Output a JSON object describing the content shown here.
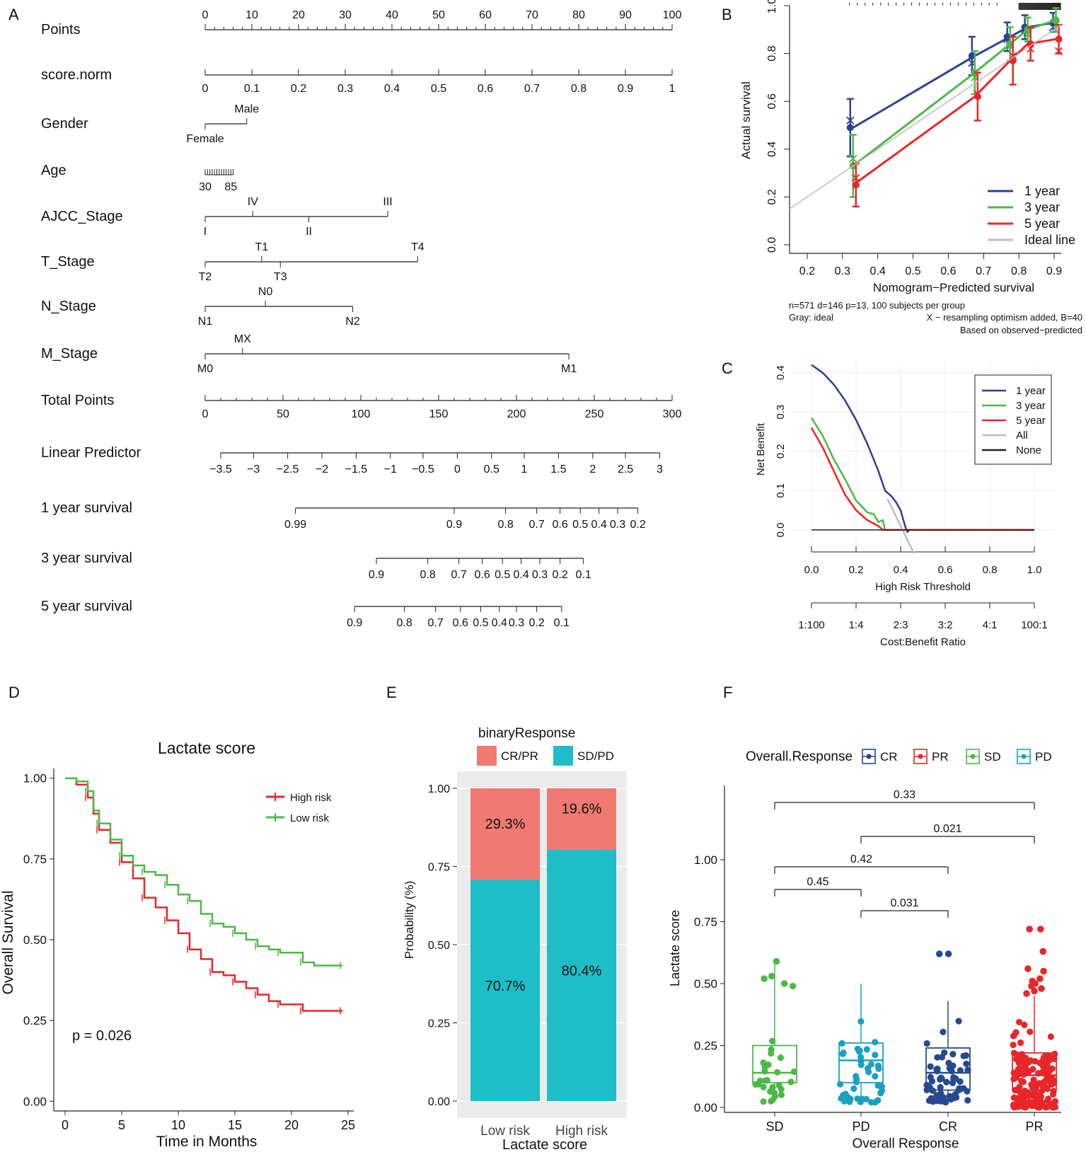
{
  "panel_labels": [
    "A",
    "B",
    "C",
    "D",
    "E",
    "F"
  ],
  "chart_data": [
    {
      "panel": "A",
      "type": "nomogram",
      "rows": [
        {
          "name": "Points",
          "ticks": [
            {
              "v": 0,
              "label": "0"
            },
            {
              "v": 10,
              "label": "10"
            },
            {
              "v": 20,
              "label": "20"
            },
            {
              "v": 30,
              "label": "30"
            },
            {
              "v": 40,
              "label": "40"
            },
            {
              "v": 50,
              "label": "50"
            },
            {
              "v": 60,
              "label": "60"
            },
            {
              "v": 70,
              "label": "70"
            },
            {
              "v": 80,
              "label": "80"
            },
            {
              "v": 90,
              "label": "90"
            },
            {
              "v": 100,
              "label": "100"
            }
          ]
        },
        {
          "name": "score.norm",
          "ticks": [
            {
              "v": 0,
              "label": "0"
            },
            {
              "v": 10,
              "label": "0.1"
            },
            {
              "v": 20,
              "label": "0.2"
            },
            {
              "v": 30,
              "label": "0.3"
            },
            {
              "v": 40,
              "label": "0.4"
            },
            {
              "v": 50,
              "label": "0.5"
            },
            {
              "v": 60,
              "label": "0.6"
            },
            {
              "v": 70,
              "label": "0.7"
            },
            {
              "v": 80,
              "label": "0.8"
            },
            {
              "v": 90,
              "label": "0.9"
            },
            {
              "v": 100,
              "label": "1"
            }
          ]
        },
        {
          "name": "Gender",
          "levels": [
            {
              "v": 0,
              "label": "Female"
            },
            {
              "v": 8.9,
              "label": "Male"
            }
          ]
        },
        {
          "name": "Age",
          "range_labels": [
            "30",
            "85"
          ],
          "range": [
            0,
            6
          ]
        },
        {
          "name": "AJCC_Stage",
          "levels": [
            {
              "v": 0,
              "label": "I"
            },
            {
              "v": 10.2,
              "label": "IV"
            },
            {
              "v": 22.2,
              "label": "II"
            },
            {
              "v": 39.1,
              "label": "III"
            }
          ]
        },
        {
          "name": "T_Stage",
          "levels": [
            {
              "v": 0,
              "label": "T2"
            },
            {
              "v": 12.1,
              "label": "T1"
            },
            {
              "v": 16.1,
              "label": "T3"
            },
            {
              "v": 45.5,
              "label": "T4"
            }
          ]
        },
        {
          "name": "N_Stage",
          "levels": [
            {
              "v": 0,
              "label": "N1"
            },
            {
              "v": 12.9,
              "label": "N0"
            },
            {
              "v": 31.6,
              "label": "N2"
            }
          ]
        },
        {
          "name": "M_Stage",
          "levels": [
            {
              "v": 0,
              "label": "M0"
            },
            {
              "v": 8,
              "label": "MX"
            },
            {
              "v": 77.9,
              "label": "M1"
            }
          ]
        },
        {
          "name": "Total Points",
          "max_points": 300,
          "ticks": [
            {
              "v": 0,
              "label": "0"
            },
            {
              "v": 50,
              "label": "50"
            },
            {
              "v": 100,
              "label": "100"
            },
            {
              "v": 150,
              "label": "150"
            },
            {
              "v": 200,
              "label": "200"
            },
            {
              "v": 250,
              "label": "250"
            },
            {
              "v": 300,
              "label": "300"
            }
          ]
        },
        {
          "name": "Linear Predictor",
          "scale_total_points": [
            10,
            292
          ],
          "ticks": [
            {
              "v": 10,
              "label": "−3.5"
            },
            {
              "v": 31,
              "label": "−3"
            },
            {
              "v": 53,
              "label": "−2.5"
            },
            {
              "v": 75,
              "label": "−2"
            },
            {
              "v": 97,
              "label": "−1.5"
            },
            {
              "v": 119,
              "label": "−1"
            },
            {
              "v": 140,
              "label": "−0.5"
            },
            {
              "v": 162,
              "label": "0"
            },
            {
              "v": 184,
              "label": "0.5"
            },
            {
              "v": 205,
              "label": "1"
            },
            {
              "v": 227,
              "label": "1.5"
            },
            {
              "v": 249,
              "label": "2"
            },
            {
              "v": 270,
              "label": "2.5"
            },
            {
              "v": 292,
              "label": "3"
            }
          ]
        },
        {
          "name": "1 year survival",
          "ticks": [
            {
              "v": 58,
              "label": "0.99"
            },
            {
              "v": 160,
              "label": "0.9"
            },
            {
              "v": 193,
              "label": "0.8"
            },
            {
              "v": 213,
              "label": "0.7"
            },
            {
              "v": 228,
              "label": "0.6"
            },
            {
              "v": 241,
              "label": "0.5"
            },
            {
              "v": 253,
              "label": "0.4"
            },
            {
              "v": 265,
              "label": "0.3"
            },
            {
              "v": 278,
              "label": "0.2"
            }
          ]
        },
        {
          "name": "3 year survival",
          "ticks": [
            {
              "v": 110,
              "label": "0.9"
            },
            {
              "v": 143,
              "label": "0.8"
            },
            {
              "v": 163,
              "label": "0.7"
            },
            {
              "v": 178,
              "label": "0.6"
            },
            {
              "v": 191,
              "label": "0.5"
            },
            {
              "v": 203,
              "label": "0.4"
            },
            {
              "v": 215,
              "label": "0.3"
            },
            {
              "v": 228,
              "label": "0.2"
            },
            {
              "v": 243,
              "label": "0.1"
            }
          ]
        },
        {
          "name": "5 year survival",
          "ticks": [
            {
              "v": 96,
              "label": "0.9"
            },
            {
              "v": 128,
              "label": "0.8"
            },
            {
              "v": 148,
              "label": "0.7"
            },
            {
              "v": 164,
              "label": "0.6"
            },
            {
              "v": 177,
              "label": "0.5"
            },
            {
              "v": 189,
              "label": "0.4"
            },
            {
              "v": 200,
              "label": "0.3"
            },
            {
              "v": 213,
              "label": "0.2"
            },
            {
              "v": 229,
              "label": "0.1"
            }
          ]
        }
      ]
    },
    {
      "panel": "B",
      "type": "line",
      "xlabel": "Nomogram−Predicted survival",
      "ylabel": "Actual survival",
      "xlim": [
        0.15,
        0.92
      ],
      "ylim": [
        0,
        1.0
      ],
      "xticks": [
        0.2,
        0.3,
        0.4,
        0.5,
        0.6,
        0.7,
        0.8,
        0.9
      ],
      "yticks": [
        0.0,
        0.2,
        0.4,
        0.6,
        0.8,
        1.0
      ],
      "footnotes": [
        "n=571 d=146 p=13, 100 subjects per group",
        "Gray: ideal",
        "X − resampling optimism added, B=40",
        "Based on observed−predicted"
      ],
      "series": [
        {
          "name": "1 year",
          "color": "#2e3f95",
          "x": [
            0.33,
            0.675,
            0.775,
            0.825,
            0.905
          ],
          "y": [
            0.49,
            0.79,
            0.87,
            0.91,
            0.93
          ],
          "err": [
            0.12,
            0.08,
            0.06,
            0.05,
            0.04
          ],
          "xmark": [
            0.52,
            0.76,
            0.86,
            0.9,
            0.91
          ]
        },
        {
          "name": "3 year",
          "color": "#4cb847",
          "x": [
            0.33,
            0.675,
            0.775,
            0.825,
            0.905
          ],
          "y": [
            0.33,
            0.72,
            0.84,
            0.9,
            0.94
          ],
          "err": [
            0.13,
            0.09,
            0.07,
            0.05,
            0.05
          ],
          "xmark": [
            0.36,
            0.7,
            0.83,
            0.88,
            0.92
          ]
        },
        {
          "name": "5 year",
          "color": "#e8262a",
          "x": [
            0.33,
            0.675,
            0.775,
            0.825,
            0.905
          ],
          "y": [
            0.25,
            0.62,
            0.77,
            0.84,
            0.86
          ],
          "err": [
            0.09,
            0.1,
            0.1,
            0.07,
            0.06
          ],
          "xmark": [
            0.28,
            0.63,
            0.79,
            0.82,
            0.81
          ]
        },
        {
          "name": "Ideal line",
          "color": "#bdbdbd",
          "x": [
            0.15,
            0.92
          ],
          "y": [
            0.15,
            0.92
          ]
        }
      ]
    },
    {
      "panel": "C",
      "type": "line",
      "title": "",
      "xlabel": "High Risk Threshold",
      "xlabel2": "Cost:Benefit Ratio",
      "ylabel": "Net Benefit",
      "xlim": [
        0,
        1.0
      ],
      "ylim": [
        -0.02,
        0.43
      ],
      "xticks": [
        0.0,
        0.2,
        0.4,
        0.6,
        0.8,
        1.0
      ],
      "yticks": [
        0.0,
        0.1,
        0.2,
        0.3,
        0.4
      ],
      "ratio_ticks": [
        "1:100",
        "1:4",
        "2:3",
        "3:2",
        "4:1",
        "100:1"
      ],
      "series": [
        {
          "name": "1 year",
          "color": "#2e3f95",
          "x": [
            0,
            0.05,
            0.1,
            0.15,
            0.2,
            0.25,
            0.3,
            0.33,
            0.36,
            0.38,
            0.4,
            0.42,
            0.43,
            0.44,
            1.0
          ],
          "y": [
            0.42,
            0.4,
            0.37,
            0.33,
            0.28,
            0.22,
            0.15,
            0.1,
            0.085,
            0.07,
            0.05,
            0.01,
            -0.005,
            0.0,
            0.0
          ]
        },
        {
          "name": "3 year",
          "color": "#4cb847",
          "x": [
            0,
            0.05,
            0.1,
            0.15,
            0.2,
            0.25,
            0.28,
            0.3,
            0.32,
            0.33,
            1.0
          ],
          "y": [
            0.285,
            0.24,
            0.18,
            0.13,
            0.075,
            0.045,
            0.04,
            0.02,
            0.025,
            0.0,
            0.0
          ]
        },
        {
          "name": "5 year",
          "color": "#e8262a",
          "x": [
            0,
            0.05,
            0.1,
            0.15,
            0.2,
            0.25,
            0.3,
            0.32,
            1.0
          ],
          "y": [
            0.26,
            0.21,
            0.15,
            0.09,
            0.05,
            0.025,
            0.01,
            0.0,
            0.0
          ]
        },
        {
          "name": "All",
          "color": "#bdbdbd",
          "x": [
            0.34,
            0.46
          ],
          "y": [
            0.08,
            -0.06
          ]
        },
        {
          "name": "None",
          "color": "#222222",
          "x": [
            0,
            1.0
          ],
          "y": [
            0.0,
            0.0
          ]
        }
      ]
    },
    {
      "panel": "D",
      "type": "line",
      "title": "Lactate score",
      "xlabel": "Time in Months",
      "ylabel": "Overall Survival",
      "xlim": [
        -1,
        25.5
      ],
      "ylim": [
        -0.03,
        1.03
      ],
      "xticks": [
        0,
        5,
        10,
        15,
        20,
        25
      ],
      "yticks": [
        0.0,
        0.25,
        0.5,
        0.75,
        1.0
      ],
      "ytick_labels": [
        "0.00",
        "0.25",
        "0.50",
        "0.75",
        "1.00"
      ],
      "annotation": "p = 0.026",
      "series": [
        {
          "name": "High risk",
          "color": "#e8262a",
          "x": [
            0,
            1,
            2,
            2.5,
            3,
            4,
            5,
            6,
            7,
            8,
            9,
            10,
            11,
            12,
            13,
            14,
            15,
            16,
            17,
            18,
            19,
            20,
            21,
            22,
            24.5
          ],
          "y": [
            1.0,
            0.98,
            0.94,
            0.89,
            0.84,
            0.8,
            0.74,
            0.69,
            0.63,
            0.6,
            0.56,
            0.52,
            0.47,
            0.44,
            0.4,
            0.39,
            0.37,
            0.35,
            0.33,
            0.31,
            0.3,
            0.3,
            0.28,
            0.28,
            0.28
          ]
        },
        {
          "name": "Low risk",
          "color": "#4cb847",
          "x": [
            0,
            1,
            2,
            2.5,
            3,
            4,
            5,
            6,
            7,
            8,
            9,
            10,
            11,
            12,
            13,
            14,
            15,
            16,
            17,
            18,
            19,
            20,
            21,
            22,
            24.5
          ],
          "y": [
            1.0,
            0.99,
            0.96,
            0.9,
            0.86,
            0.81,
            0.76,
            0.73,
            0.71,
            0.7,
            0.67,
            0.64,
            0.62,
            0.58,
            0.55,
            0.54,
            0.52,
            0.5,
            0.48,
            0.47,
            0.46,
            0.46,
            0.43,
            0.42,
            0.42
          ]
        }
      ]
    },
    {
      "panel": "E",
      "type": "bar",
      "xlabel": "Lactate score",
      "ylabel": "Probability (%)",
      "legend_title": "binaryResponse",
      "categories": [
        "Low risk",
        "High risk"
      ],
      "ylim": [
        0,
        1.0
      ],
      "yticks": [
        0.0,
        0.25,
        0.5,
        0.75,
        1.0
      ],
      "ytick_labels": [
        "0.00",
        "0.25",
        "0.50",
        "0.75",
        "1.00"
      ],
      "series": [
        {
          "name": "SD/PD",
          "color": "#1dbec7",
          "values": [
            0.707,
            0.804
          ],
          "labels": [
            "70.7%",
            "80.4%"
          ]
        },
        {
          "name": "CR/PR",
          "color": "#f07a72",
          "values": [
            0.293,
            0.196
          ],
          "labels": [
            "29.3%",
            "19.6%"
          ]
        }
      ]
    },
    {
      "panel": "F",
      "type": "box",
      "legend_title": "Overall.Response",
      "xlabel": "Overall Response",
      "ylabel": "Lactate score",
      "categories": [
        "SD",
        "PD",
        "CR",
        "PR"
      ],
      "legend_order": [
        "CR",
        "PR",
        "SD",
        "PD"
      ],
      "colors": {
        "CR": "#27498f",
        "PR": "#e8262a",
        "SD": "#4cb847",
        "PD": "#1aa1c1"
      },
      "ylim": [
        -0.02,
        1.3
      ],
      "yticks": [
        0.0,
        0.25,
        0.5,
        0.75,
        1.0
      ],
      "ytick_labels": [
        "0.00",
        "0.25",
        "0.50",
        "0.75",
        "1.00"
      ],
      "boxes": [
        {
          "group": "SD",
          "min": 0.02,
          "q1": 0.1,
          "median": 0.14,
          "q3": 0.25,
          "max": 0.58,
          "n": 28,
          "outliers": [
            0.5,
            0.52,
            0.53,
            0.59
          ]
        },
        {
          "group": "PD",
          "min": 0.02,
          "q1": 0.1,
          "median": 0.19,
          "q3": 0.26,
          "max": 0.5,
          "n": 45,
          "outliers": []
        },
        {
          "group": "CR",
          "min": 0.02,
          "q1": 0.07,
          "median": 0.14,
          "q3": 0.24,
          "max": 0.43,
          "n": 65,
          "outliers": [
            0.62,
            0.62
          ]
        },
        {
          "group": "PR",
          "min": 0.0,
          "q1": 0.07,
          "median": 0.13,
          "q3": 0.22,
          "max": 0.45,
          "n": 160,
          "outliers": [
            0.72,
            0.72,
            0.63,
            0.56,
            0.55,
            0.52,
            0.51,
            0.5,
            0.49,
            0.48,
            0.47,
            0.46
          ]
        }
      ],
      "comparisons": [
        {
          "from": "SD",
          "to": "PR",
          "label": "0.33",
          "level": 5
        },
        {
          "from": "PD",
          "to": "PR",
          "label": "0.021",
          "level": 4
        },
        {
          "from": "SD",
          "to": "CR",
          "label": "0.42",
          "level": 3
        },
        {
          "from": "SD",
          "to": "PD",
          "label": "0.45",
          "level": 2
        },
        {
          "from": "PD",
          "to": "CR",
          "label": "0.031",
          "level": 1
        }
      ]
    }
  ]
}
